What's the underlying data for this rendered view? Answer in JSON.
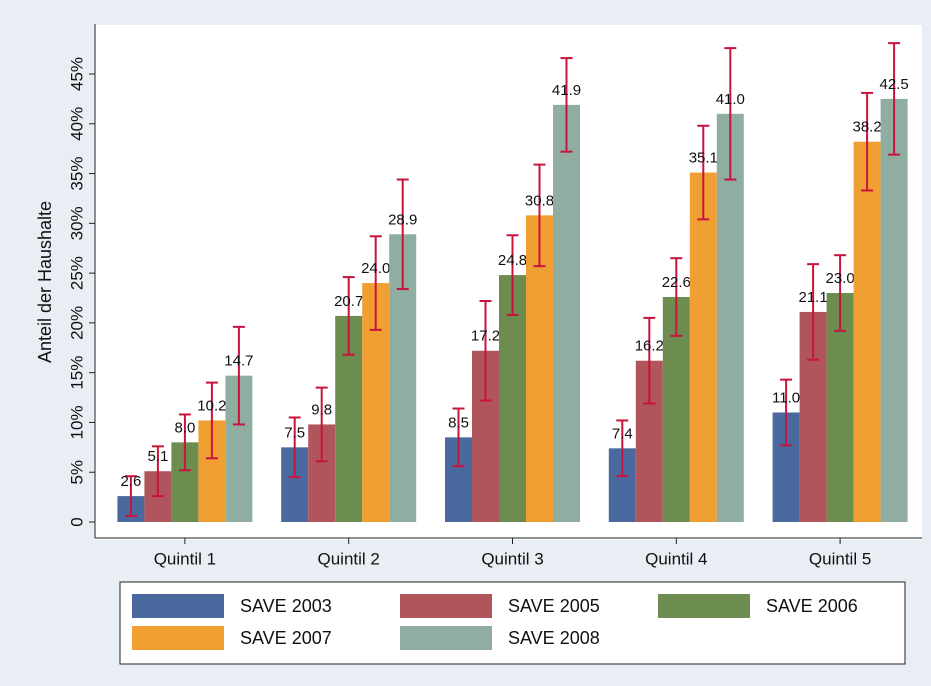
{
  "chart_data": {
    "type": "bar",
    "y_label": "Anteil der Haushalte",
    "categories": [
      "Quintil 1",
      "Quintil 2",
      "Quintil 3",
      "Quintil 4",
      "Quintil 5"
    ],
    "series": [
      {
        "name": "SAVE 2003",
        "color": "#4a6a9f",
        "values": [
          2.6,
          7.5,
          8.5,
          7.4,
          11.0
        ],
        "value_labels": [
          "2.6",
          "7.5",
          "8.5",
          "7.4",
          "11.0"
        ],
        "errors": [
          2.0,
          3.0,
          2.9,
          2.8,
          3.3
        ]
      },
      {
        "name": "SAVE 2005",
        "color": "#b0555b",
        "values": [
          5.1,
          9.8,
          17.2,
          16.2,
          21.1
        ],
        "value_labels": [
          "5.1",
          "9.8",
          "17.2",
          "16.2",
          "21.1"
        ],
        "errors": [
          2.5,
          3.7,
          5.0,
          4.3,
          4.8
        ]
      },
      {
        "name": "SAVE 2006",
        "color": "#6c8d4f",
        "values": [
          8.0,
          20.7,
          24.8,
          22.6,
          23.0
        ],
        "value_labels": [
          "8.0",
          "20.7",
          "24.8",
          "22.6",
          "23.0"
        ],
        "errors": [
          2.8,
          3.9,
          4.0,
          3.9,
          3.8
        ]
      },
      {
        "name": "SAVE 2007",
        "color": "#f0a032",
        "values": [
          10.2,
          24.0,
          30.8,
          35.1,
          38.2
        ],
        "value_labels": [
          "10.2",
          "24.0",
          "30.8",
          "35.1",
          "38.2"
        ],
        "errors": [
          3.8,
          4.7,
          5.1,
          4.7,
          4.9
        ]
      },
      {
        "name": "SAVE 2008",
        "color": "#8fada1",
        "values": [
          14.7,
          28.9,
          41.9,
          41.0,
          42.5
        ],
        "value_labels": [
          "14.7",
          "28.9",
          "41.9",
          "41.0",
          "42.5"
        ],
        "errors": [
          4.9,
          5.5,
          4.7,
          6.6,
          5.6
        ]
      }
    ],
    "error_color": "#c8143c",
    "ylim": [
      0,
      45
    ],
    "yticks": [
      0,
      {
        "value": 5,
        "label": "5%"
      },
      {
        "value": 10,
        "label": "10%"
      },
      {
        "value": 15,
        "label": "15%"
      },
      {
        "value": 20,
        "label": "20%"
      },
      {
        "value": 25,
        "label": "25%"
      },
      {
        "value": 30,
        "label": "30%"
      },
      {
        "value": 35,
        "label": "35%"
      },
      {
        "value": 40,
        "label": "40%"
      },
      {
        "value": 45,
        "label": "45%"
      }
    ],
    "grid": false
  }
}
